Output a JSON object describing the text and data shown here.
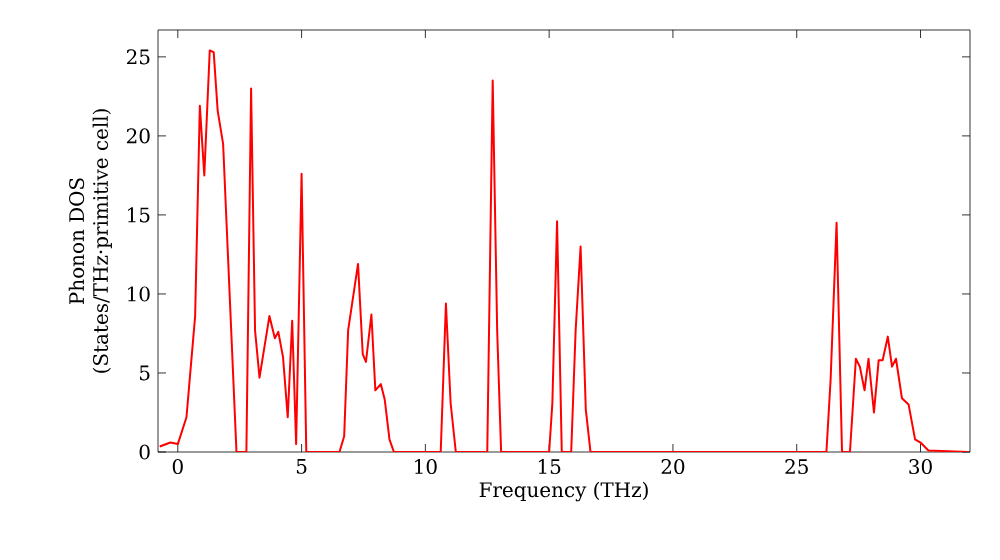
{
  "chart_data": {
    "type": "line",
    "xlabel": "Frequency (THz)",
    "ylabel": "Phonon DOS\n(States/THz·primitive cell)",
    "xlim": [
      -0.8,
      32
    ],
    "ylim": [
      0,
      26.7
    ],
    "xticks": [
      0,
      5,
      10,
      15,
      20,
      25,
      30
    ],
    "yticks": [
      0,
      5,
      10,
      15,
      20,
      25
    ],
    "grid": false,
    "series": [
      {
        "color": "#ff0000",
        "line_style": "solid",
        "x": [
          -0.73,
          -0.3,
          0,
          0.35,
          0.7,
          0.89,
          1.07,
          1.29,
          1.45,
          1.61,
          1.83,
          2.37,
          2.77,
          2.96,
          3.12,
          3.3,
          3.7,
          3.92,
          4.06,
          4.25,
          4.44,
          4.62,
          4.78,
          5.0,
          5.19,
          6.53,
          6.72,
          6.88,
          7.28,
          7.47,
          7.6,
          7.82,
          7.98,
          8.2,
          8.36,
          8.55,
          8.73,
          10.62,
          10.83,
          11.02,
          11.23,
          12.5,
          12.72,
          12.9,
          13.06,
          15.0,
          15.13,
          15.32,
          15.51,
          15.89,
          16.07,
          16.27,
          16.48,
          16.67,
          26.2,
          26.37,
          26.61,
          26.83,
          27.15,
          27.39,
          27.55,
          27.74,
          27.9,
          28.12,
          28.31,
          28.47,
          28.68,
          28.85,
          29.01,
          29.25,
          29.52,
          29.78,
          30.0,
          30.32,
          31.9
        ],
        "values": [
          0.35,
          0.6,
          0.5,
          2.2,
          8.6,
          21.9,
          17.5,
          25.4,
          25.3,
          21.6,
          19.5,
          0,
          0,
          23.0,
          7.7,
          4.7,
          8.6,
          7.2,
          7.6,
          6.0,
          2.2,
          8.3,
          0.5,
          17.6,
          0,
          0,
          1.0,
          7.7,
          11.9,
          6.2,
          5.7,
          8.7,
          3.9,
          4.3,
          3.3,
          0.8,
          0,
          0,
          9.4,
          3.1,
          0,
          0,
          23.5,
          7.7,
          0,
          0,
          3.1,
          14.6,
          0,
          0,
          7.7,
          13.0,
          2.7,
          0,
          0,
          4.6,
          14.5,
          0,
          0,
          5.9,
          5.4,
          3.9,
          5.9,
          2.5,
          5.8,
          5.8,
          7.3,
          5.4,
          5.9,
          3.4,
          3.0,
          0.8,
          0.6,
          0.1,
          0
        ]
      }
    ]
  }
}
